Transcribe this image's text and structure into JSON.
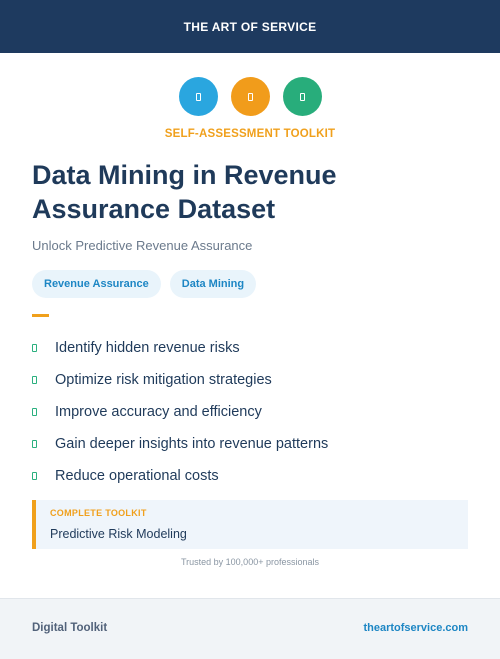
{
  "header": {
    "brand": "THE ART OF SERVICE"
  },
  "icons": [
    "document-icon",
    "chart-icon",
    "shield-icon"
  ],
  "colors": {
    "blue": "#2aa6df",
    "orange": "#f19c1b",
    "green": "#28ad7b",
    "navy": "#1e3a5f"
  },
  "eyebrow": "SELF-ASSESSMENT TOOLKIT",
  "title": "Data Mining in Revenue Assurance Dataset",
  "subtitle": "Unlock Predictive Revenue Assurance",
  "tags": [
    "Revenue Assurance",
    "Data Mining"
  ],
  "benefits": [
    "Identify hidden revenue risks",
    "Optimize risk mitigation strategies",
    "Improve accuracy and efficiency",
    "Gain deeper insights into revenue patterns",
    "Reduce operational costs"
  ],
  "toolkit": {
    "label": "COMPLETE TOOLKIT",
    "value": "Predictive Risk Modeling"
  },
  "trusted": "Trusted by 100,000+ professionals",
  "footer": {
    "left": "Digital Toolkit",
    "right": "theartofservice.com"
  }
}
